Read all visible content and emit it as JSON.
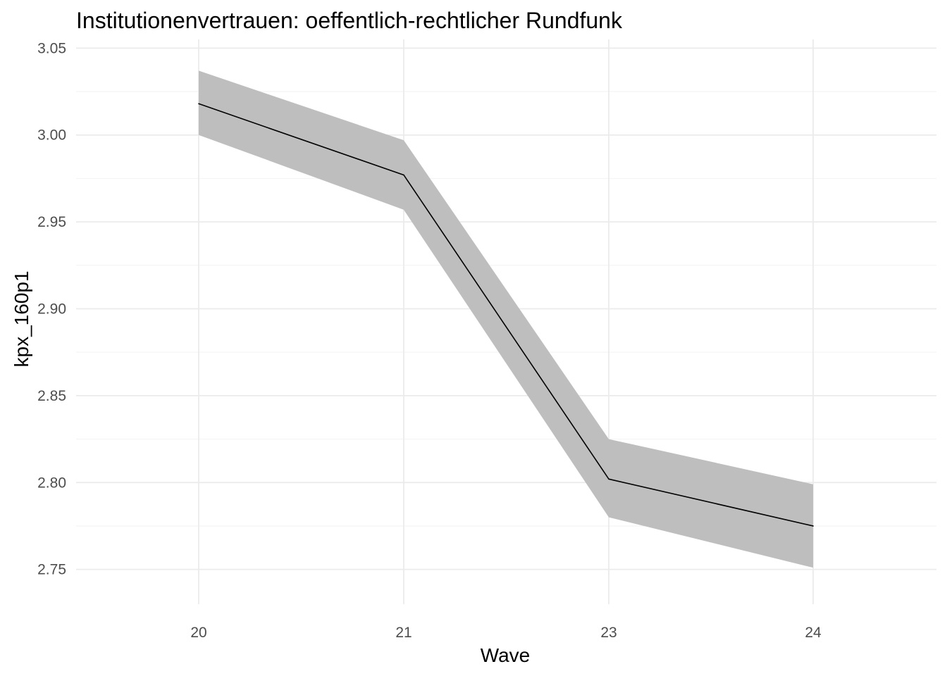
{
  "chart_data": {
    "type": "line",
    "title": "Institutionenvertrauen: oeffentlich-rechtlicher Rundfunk",
    "xlabel": "Wave",
    "ylabel": "kpx_160p1",
    "categories": [
      "20",
      "21",
      "23",
      "24"
    ],
    "series": [
      {
        "values": [
          3.018,
          2.977,
          2.802,
          2.775
        ],
        "lower": [
          3.0,
          2.957,
          2.78,
          2.751
        ],
        "upper": [
          3.037,
          2.997,
          2.825,
          2.799
        ]
      }
    ],
    "ylim": [
      2.73,
      3.055
    ],
    "yticks": [
      2.75,
      2.8,
      2.85,
      2.9,
      2.95,
      3.0,
      3.05
    ],
    "ytick_labels": [
      "2.75",
      "2.80",
      "2.85",
      "2.90",
      "2.95",
      "3.00",
      "3.05"
    ],
    "grid": true,
    "colors": {
      "line": "#000000",
      "ribbon": "#bebebe",
      "grid": "#ebebeb"
    }
  }
}
